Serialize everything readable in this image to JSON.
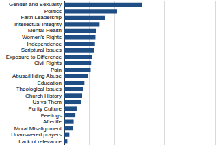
{
  "chart_data": {
    "type": "bar",
    "orientation": "horizontal",
    "categories": [
      "Gender and Sexuality",
      "Politics",
      "Faith Leadership",
      "Intellectual Integrity",
      "Mental Health",
      "Women's Rights",
      "Independence",
      "Scriptural Issues",
      "Exposure to Difference",
      "Civil Rights",
      "Pain",
      "Abuse/Hiding Abuse",
      "Education",
      "Theological Issues",
      "Church History",
      "Us vs Them",
      "Purity Culture",
      "Feelings",
      "Afterlife",
      "Moral Misalignment",
      "Unanswered prayers",
      "Lack of relevance"
    ],
    "values": [
      31,
      21,
      16.3,
      14,
      12.7,
      12.4,
      12.2,
      11.9,
      11,
      10.7,
      10.5,
      9.3,
      8,
      7.6,
      7.1,
      6.6,
      4.9,
      4.4,
      3.7,
      3.4,
      2,
      1.2
    ],
    "color": "#1f4e85",
    "xlim": [
      0,
      60
    ],
    "xticks": [
      0,
      10,
      20,
      30,
      40,
      50,
      60
    ],
    "grid": true,
    "tick_labels": "y"
  }
}
